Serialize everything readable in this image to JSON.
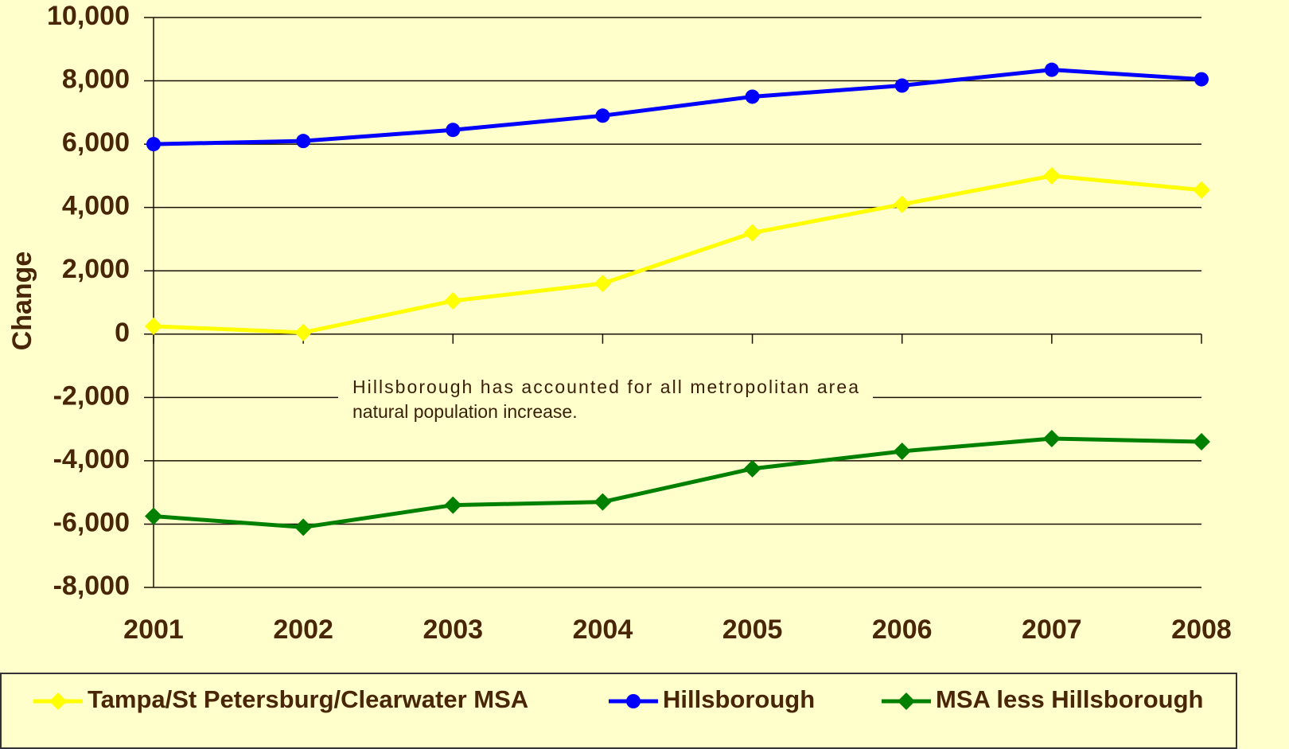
{
  "chart_data": {
    "type": "line",
    "y_label": "Change",
    "annotation": [
      "Hillsborough has accounted for all metropolitan area",
      "natural population increase."
    ],
    "x": [
      2001,
      2002,
      2003,
      2004,
      2005,
      2006,
      2007,
      2008
    ],
    "xlim": [
      2001,
      2008
    ],
    "xticks": [
      2001,
      2002,
      2003,
      2004,
      2005,
      2006,
      2007,
      2008
    ],
    "ylim": [
      -8000,
      10000
    ],
    "yticks": [
      {
        "value": -8000,
        "label": "-8,000"
      },
      {
        "value": -6000,
        "label": "-6,000"
      },
      {
        "value": -4000,
        "label": "-4,000"
      },
      {
        "value": -2000,
        "label": "-2,000"
      },
      0,
      {
        "value": 2000,
        "label": "2,000"
      },
      {
        "value": 4000,
        "label": "4,000"
      },
      {
        "value": 6000,
        "label": "6,000"
      },
      {
        "value": 8000,
        "label": "8,000"
      },
      {
        "value": 10000,
        "label": "10,000"
      }
    ],
    "grid": true,
    "legend": "bottom",
    "series": [
      {
        "name": "Tampa/St Petersburg/Clearwater MSA",
        "color": "#ffff00",
        "marker": "diamond",
        "values": [
          250,
          50,
          1050,
          1600,
          3200,
          4100,
          5000,
          4550
        ]
      },
      {
        "name": "Hillsborough",
        "color": "#0000ff",
        "marker": "circle",
        "values": [
          6000,
          6100,
          6450,
          6900,
          7500,
          7850,
          8350,
          8050
        ]
      },
      {
        "name": "MSA less Hillsborough",
        "color": "#008000",
        "marker": "diamond",
        "values": [
          -5750,
          -6100,
          -5400,
          -5300,
          -4250,
          -3700,
          -3300,
          -3400
        ]
      }
    ]
  }
}
